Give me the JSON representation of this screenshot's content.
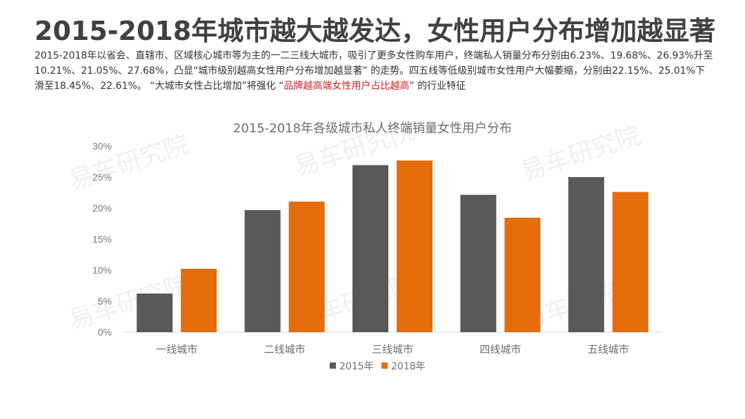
{
  "page": {
    "title": "2015-2018年城市越大越发达，女性用户分布增加越显著",
    "desc_parts": [
      "2015-2018年以省会、直辖市、区域核心城市等为主的一二三线大城市，吸引了更多女性购车用户，终端私人销量分布分别由6.23%、19.68%、26.93%升至10.21%、21.05%、27.68%，凸显“城市级别越高女性用户分布增加越显著” 的走势。四五线等低级别城市女性用户大幅萎缩，分别由22.15%、25.01%下滑至18.45%、22.61%。 “大城市女性占比增加”将强化 “",
      "品牌越高端女性用户占比越高",
      "” 的行业特征"
    ],
    "highlight_color": "#c8232c",
    "watermark": "易车研究院"
  },
  "chart_data": {
    "type": "bar",
    "title": "2015-2018年各级城市私人终端销量女性用户分布",
    "categories": [
      "一线城市",
      "二线城市",
      "三线城市",
      "四线城市",
      "五线城市"
    ],
    "series": [
      {
        "name": "2015年",
        "color": "#595959",
        "values": [
          6.23,
          19.68,
          26.93,
          22.15,
          25.01
        ]
      },
      {
        "name": "2018年",
        "color": "#e46c0a",
        "values": [
          10.21,
          21.05,
          27.68,
          18.45,
          22.61
        ]
      }
    ],
    "ylim": [
      0,
      30
    ],
    "yticks": [
      "0%",
      "5%",
      "10%",
      "15%",
      "20%",
      "25%",
      "30%"
    ],
    "ytick_values": [
      0,
      5,
      10,
      15,
      20,
      25,
      30
    ],
    "grid": false,
    "legend_position": "bottom-center"
  }
}
